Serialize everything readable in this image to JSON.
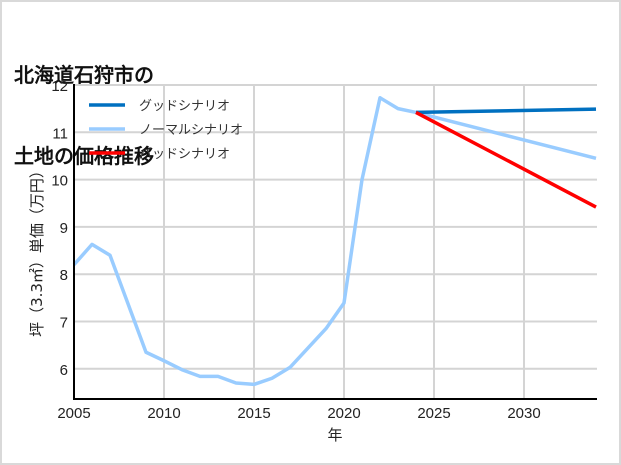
{
  "chart_data": {
    "type": "line",
    "title": "北海道石狩市の\n土地の価格推移",
    "title_lines": [
      "北海道石狩市の",
      "土地の価格推移"
    ],
    "xlabel": "年",
    "ylabel": "坪（3.3㎡）単価（万円）",
    "xlim": [
      2005,
      2034
    ],
    "ylim": [
      5.4,
      12
    ],
    "x_ticks": [
      2005,
      2010,
      2015,
      2020,
      2025,
      2030
    ],
    "y_ticks": [
      6,
      7,
      8,
      9,
      10,
      11,
      12
    ],
    "grid": true,
    "legend_position": "upper left",
    "series": [
      {
        "name": "グッドシナリオ",
        "color": "#0070c0",
        "x": [
          2024,
          2034
        ],
        "values": [
          11.42,
          11.49
        ]
      },
      {
        "name": "ノーマルシナリオ",
        "color": "#99ccff",
        "x": [
          2005,
          2006,
          2007,
          2009,
          2010,
          2011,
          2012,
          2013,
          2014,
          2015,
          2016,
          2017,
          2019,
          2020,
          2021,
          2022,
          2023,
          2024,
          2034
        ],
        "values": [
          8.2,
          8.63,
          8.4,
          6.35,
          6.17,
          5.98,
          5.84,
          5.84,
          5.7,
          5.67,
          5.8,
          6.03,
          6.85,
          7.39,
          10.0,
          11.73,
          11.5,
          11.42,
          10.45
        ]
      },
      {
        "name": "バッドシナリオ",
        "color": "#ff0000",
        "x": [
          2024,
          2034
        ],
        "values": [
          11.42,
          9.42
        ]
      }
    ]
  }
}
